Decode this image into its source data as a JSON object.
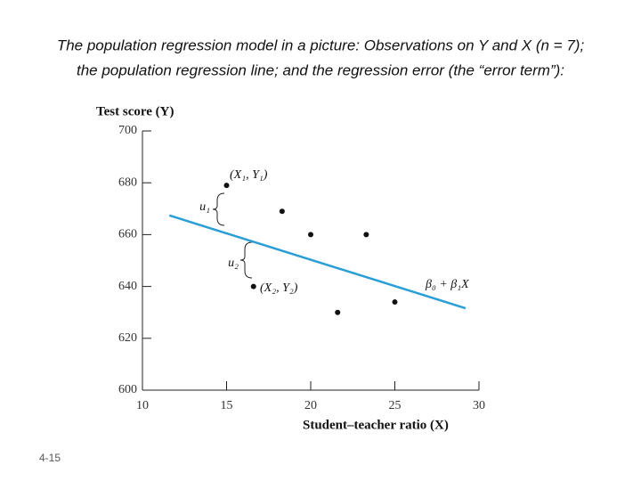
{
  "chart_data": {
    "type": "scatter",
    "title": [
      "The population regression model in a picture: Observations on Y and X (n = 7);",
      "the population regression line; and the regression error (the “error term”):"
    ],
    "y_label": "Test score (Y)",
    "x_label": "Student–teacher ratio (X)",
    "x": [
      15,
      18.3,
      20,
      23.3,
      16.6,
      21.6,
      25
    ],
    "values": [
      679,
      669,
      660,
      660,
      640,
      630,
      634
    ],
    "color": "#111111",
    "regression_line": {
      "x": [
        11.6,
        29.2
      ],
      "values": [
        667.4,
        631.6
      ],
      "color": "#2a9fd6"
    },
    "annotations": [
      "(X₁, Y₁)",
      "u₁",
      "u₂",
      "(X₂, Y₂)",
      "β₀ + β₁X"
    ],
    "xlim": [
      10,
      30
    ],
    "xticks": [
      10,
      15,
      20,
      25,
      30
    ],
    "ylim": [
      600,
      700
    ],
    "yticks": [
      600,
      620,
      640,
      660,
      680,
      700
    ],
    "slide_number": "4-15"
  }
}
